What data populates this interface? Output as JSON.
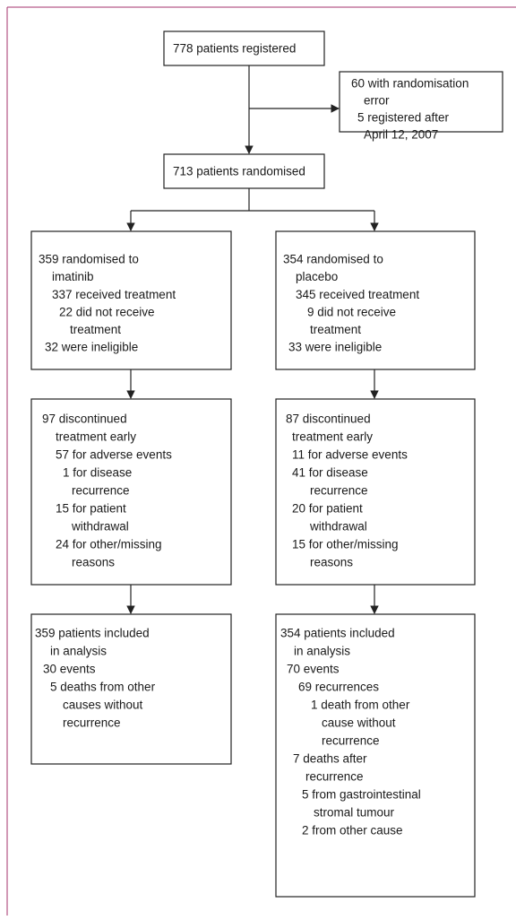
{
  "nodes": [
    {
      "lines": [
        "778 patients registered"
      ]
    },
    {
      "lines": [
        "60 with randomisation",
        "error",
        "5 registered after",
        "April 12, 2007"
      ]
    },
    {
      "lines": [
        "713 patients randomised"
      ]
    },
    {
      "lines": [
        "359 randomised to",
        "imatinib",
        "337 received treatment",
        "22 did not receive",
        "treatment",
        "32 were ineligible"
      ]
    },
    {
      "lines": [
        "354 randomised to",
        "placebo",
        "345 received treatment",
        "9 did not receive",
        "treatment",
        "33 were ineligible"
      ]
    },
    {
      "lines": [
        "97 discontinued",
        "treatment early",
        "57 for adverse events",
        "1 for disease",
        "recurrence",
        "15 for patient",
        "withdrawal",
        "24 for other/missing",
        "reasons"
      ]
    },
    {
      "lines": [
        "87 discontinued",
        "treatment early",
        "11 for adverse events",
        "41 for disease",
        "recurrence",
        "20 for patient",
        "withdrawal",
        "15 for other/missing",
        "reasons"
      ]
    },
    {
      "lines": [
        "359 patients included",
        "in analysis",
        "30 events",
        "5 deaths from other",
        "causes without",
        "recurrence"
      ]
    },
    {
      "lines": [
        "354 patients included",
        "in analysis",
        "70 events",
        "69 recurrences",
        "1 death from other",
        "cause without",
        "recurrence",
        "7 deaths after",
        "recurrence",
        "5 from gastrointestinal",
        "stromal tumour",
        "2 from other cause"
      ]
    }
  ]
}
